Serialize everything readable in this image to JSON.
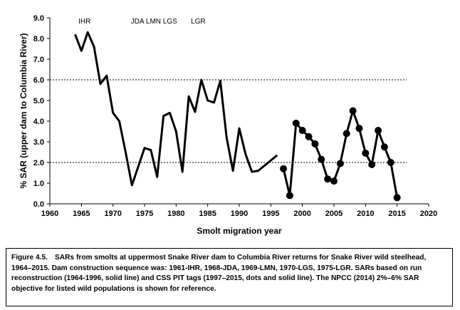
{
  "chart_data": {
    "type": "line",
    "ylabel": "% SAR (upper dam to Columbia River)",
    "xlabel": "Smolt migration year",
    "xlim": [
      1960,
      2020
    ],
    "ylim": [
      0.0,
      9.0
    ],
    "x_ticks": [
      1960,
      1965,
      1970,
      1975,
      1980,
      1985,
      1990,
      1995,
      2000,
      2005,
      2010,
      2015,
      2020
    ],
    "y_ticks": [
      "0.0",
      "1.0",
      "2.0",
      "3.0",
      "4.0",
      "5.0",
      "6.0",
      "7.0",
      "8.0",
      "9.0"
    ],
    "reference_lines": [
      2.0,
      6.0
    ],
    "dam_labels": [
      {
        "text": "IHR",
        "year": 1965.5
      },
      {
        "text": "JDA LMN LGS",
        "year": 1976.5
      },
      {
        "text": "LGR",
        "year": 1983.5
      }
    ],
    "series": [
      {
        "style": "solid line",
        "x": [
          1964,
          1965,
          1966,
          1967,
          1968,
          1969,
          1970,
          1971,
          1972,
          1973,
          1974,
          1975,
          1976,
          1977,
          1978,
          1979,
          1980,
          1981,
          1982,
          1983,
          1984,
          1985,
          1986,
          1987,
          1988,
          1989,
          1990,
          1991,
          1992,
          1993,
          1994,
          1995,
          1996
        ],
        "y": [
          8.2,
          7.4,
          8.3,
          7.6,
          5.8,
          6.2,
          4.4,
          4.0,
          2.5,
          0.9,
          1.8,
          2.7,
          2.6,
          1.3,
          4.25,
          4.4,
          3.5,
          1.55,
          5.2,
          4.45,
          6.0,
          5.0,
          4.9,
          5.95,
          3.2,
          1.6,
          3.65,
          2.4,
          1.55,
          1.6,
          1.85,
          2.1,
          2.35
        ]
      },
      {
        "style": "dots and solid line",
        "x": [
          1997,
          1998,
          1999,
          2000,
          2001,
          2002,
          2003,
          2004,
          2005,
          2006,
          2007,
          2008,
          2009,
          2010,
          2011,
          2012,
          2013,
          2014,
          2015
        ],
        "y": [
          1.7,
          0.4,
          3.9,
          3.55,
          3.25,
          2.9,
          2.15,
          1.2,
          1.1,
          1.95,
          3.4,
          4.5,
          3.65,
          2.45,
          1.9,
          3.55,
          2.75,
          2.0,
          0.3
        ]
      }
    ]
  },
  "caption": {
    "figure_number": "Figure 4.5.",
    "text": "SARs from smolts at uppermost Snake River dam to Columbia River returns for Snake River wild steelhead, 1964–2015. Dam construction sequence was: 1961-IHR, 1968-JDA, 1969-LMN, 1970-LGS, 1975-LGR. SARs based on run reconstruction (1964-1996, solid line) and CSS PIT tags (1997–2015, dots and solid line). The NPCC (2014) 2%–6% SAR objective for listed wild populations is shown for reference."
  }
}
